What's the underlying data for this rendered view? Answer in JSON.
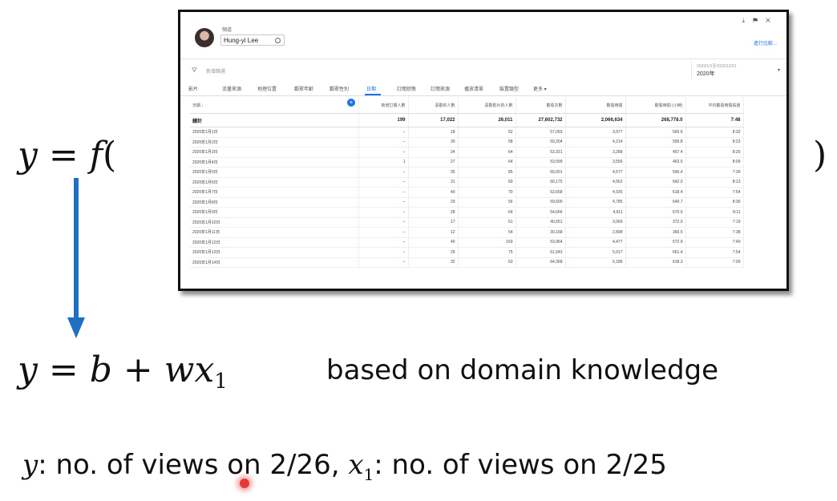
{
  "equation_top": {
    "lhs": "y",
    "eq": "=",
    "func": "f",
    "open": "(",
    "close": ")"
  },
  "equation_bottom": {
    "y": "y",
    "eq": "=",
    "b": "b",
    "plus": "+",
    "w": "w",
    "x": "x",
    "sub": "1"
  },
  "note": "based on domain knowledge",
  "bottom": {
    "y": "y",
    "t1": ": no. of views on 2/26, ",
    "x": "x",
    "sub": "1",
    "t2": ": no. of views on 2/25"
  },
  "colors": {
    "arrow": "#1f6fc2",
    "tab_active": "#1a73e8"
  },
  "screenshot": {
    "channel_label": "頻道",
    "user": "Hung-yi Lee",
    "top_link": "進行比較...",
    "filter_text": "新增篩選",
    "date_range": "2020/1/1至2020/12/31",
    "date_year": "2020年",
    "tabs": [
      "影片",
      "流量來源",
      "地理位置",
      "觀眾年齡",
      "觀眾性別",
      "日期",
      "訂閱狀態",
      "訂閱來源",
      "播放清單",
      "裝置類型",
      "更多 ▾"
    ],
    "columns": [
      "日期 ↓",
      "新增訂閱人數",
      "喜歡的人數",
      "喜歡影片的人數",
      "觀看次數",
      "觀看時間",
      "觀看時間 (小時)",
      "平均觀看時間長度"
    ],
    "total": [
      "總計",
      "199",
      "17,022",
      "26,011",
      "27,602,732",
      "2,066,634",
      "268,778.0",
      "7:48"
    ],
    "rows": [
      [
        "2020年1月1日",
        "–",
        "18",
        "52",
        "57,093",
        "3,977",
        "565.6",
        "8:32"
      ],
      [
        "2020年1月2日",
        "–",
        "30",
        "58",
        "59,204",
        "4,214",
        "599.8",
        "8:23"
      ],
      [
        "2020年1月3日",
        "–",
        "24",
        "64",
        "53,321",
        "3,288",
        "457.4",
        "8:20"
      ],
      [
        "2020年1月4日",
        "1",
        "27",
        "64",
        "53,599",
        "3,556",
        "463.5",
        "8:09"
      ],
      [
        "2020年1月5日",
        "–",
        "35",
        "85",
        "60,001",
        "4,577",
        "596.4",
        "7:39"
      ],
      [
        "2020年1月6日",
        "–",
        "31",
        "69",
        "60,175",
        "4,562",
        "642.0",
        "8:13"
      ],
      [
        "2020年1月7日",
        "–",
        "40",
        "70",
        "63,658",
        "4,935",
        "618.4",
        "7:54"
      ],
      [
        "2020年1月8日",
        "–",
        "29",
        "56",
        "59,600",
        "4,785",
        "649.7",
        "8:36"
      ],
      [
        "2020年1月9日",
        "–",
        "28",
        "64",
        "54,666",
        "4,911",
        "670.9",
        "8:11"
      ],
      [
        "2020年1月10日",
        "–",
        "17",
        "51",
        "40,651",
        "3,069",
        "372.0",
        "7:19"
      ],
      [
        "2020年1月11日",
        "–",
        "12",
        "54",
        "39,168",
        "2,898",
        "366.5",
        "7:38"
      ],
      [
        "2020年1月12日",
        "–",
        "40",
        "169",
        "53,964",
        "4,477",
        "572.9",
        "7:40"
      ],
      [
        "2020年1月13日",
        "–",
        "29",
        "75",
        "61,543",
        "5,017",
        "661.4",
        "7:54"
      ],
      [
        "2020年1月14日",
        "–",
        "32",
        "63",
        "64,368",
        "5,186",
        "618.3",
        "7:09"
      ]
    ]
  }
}
